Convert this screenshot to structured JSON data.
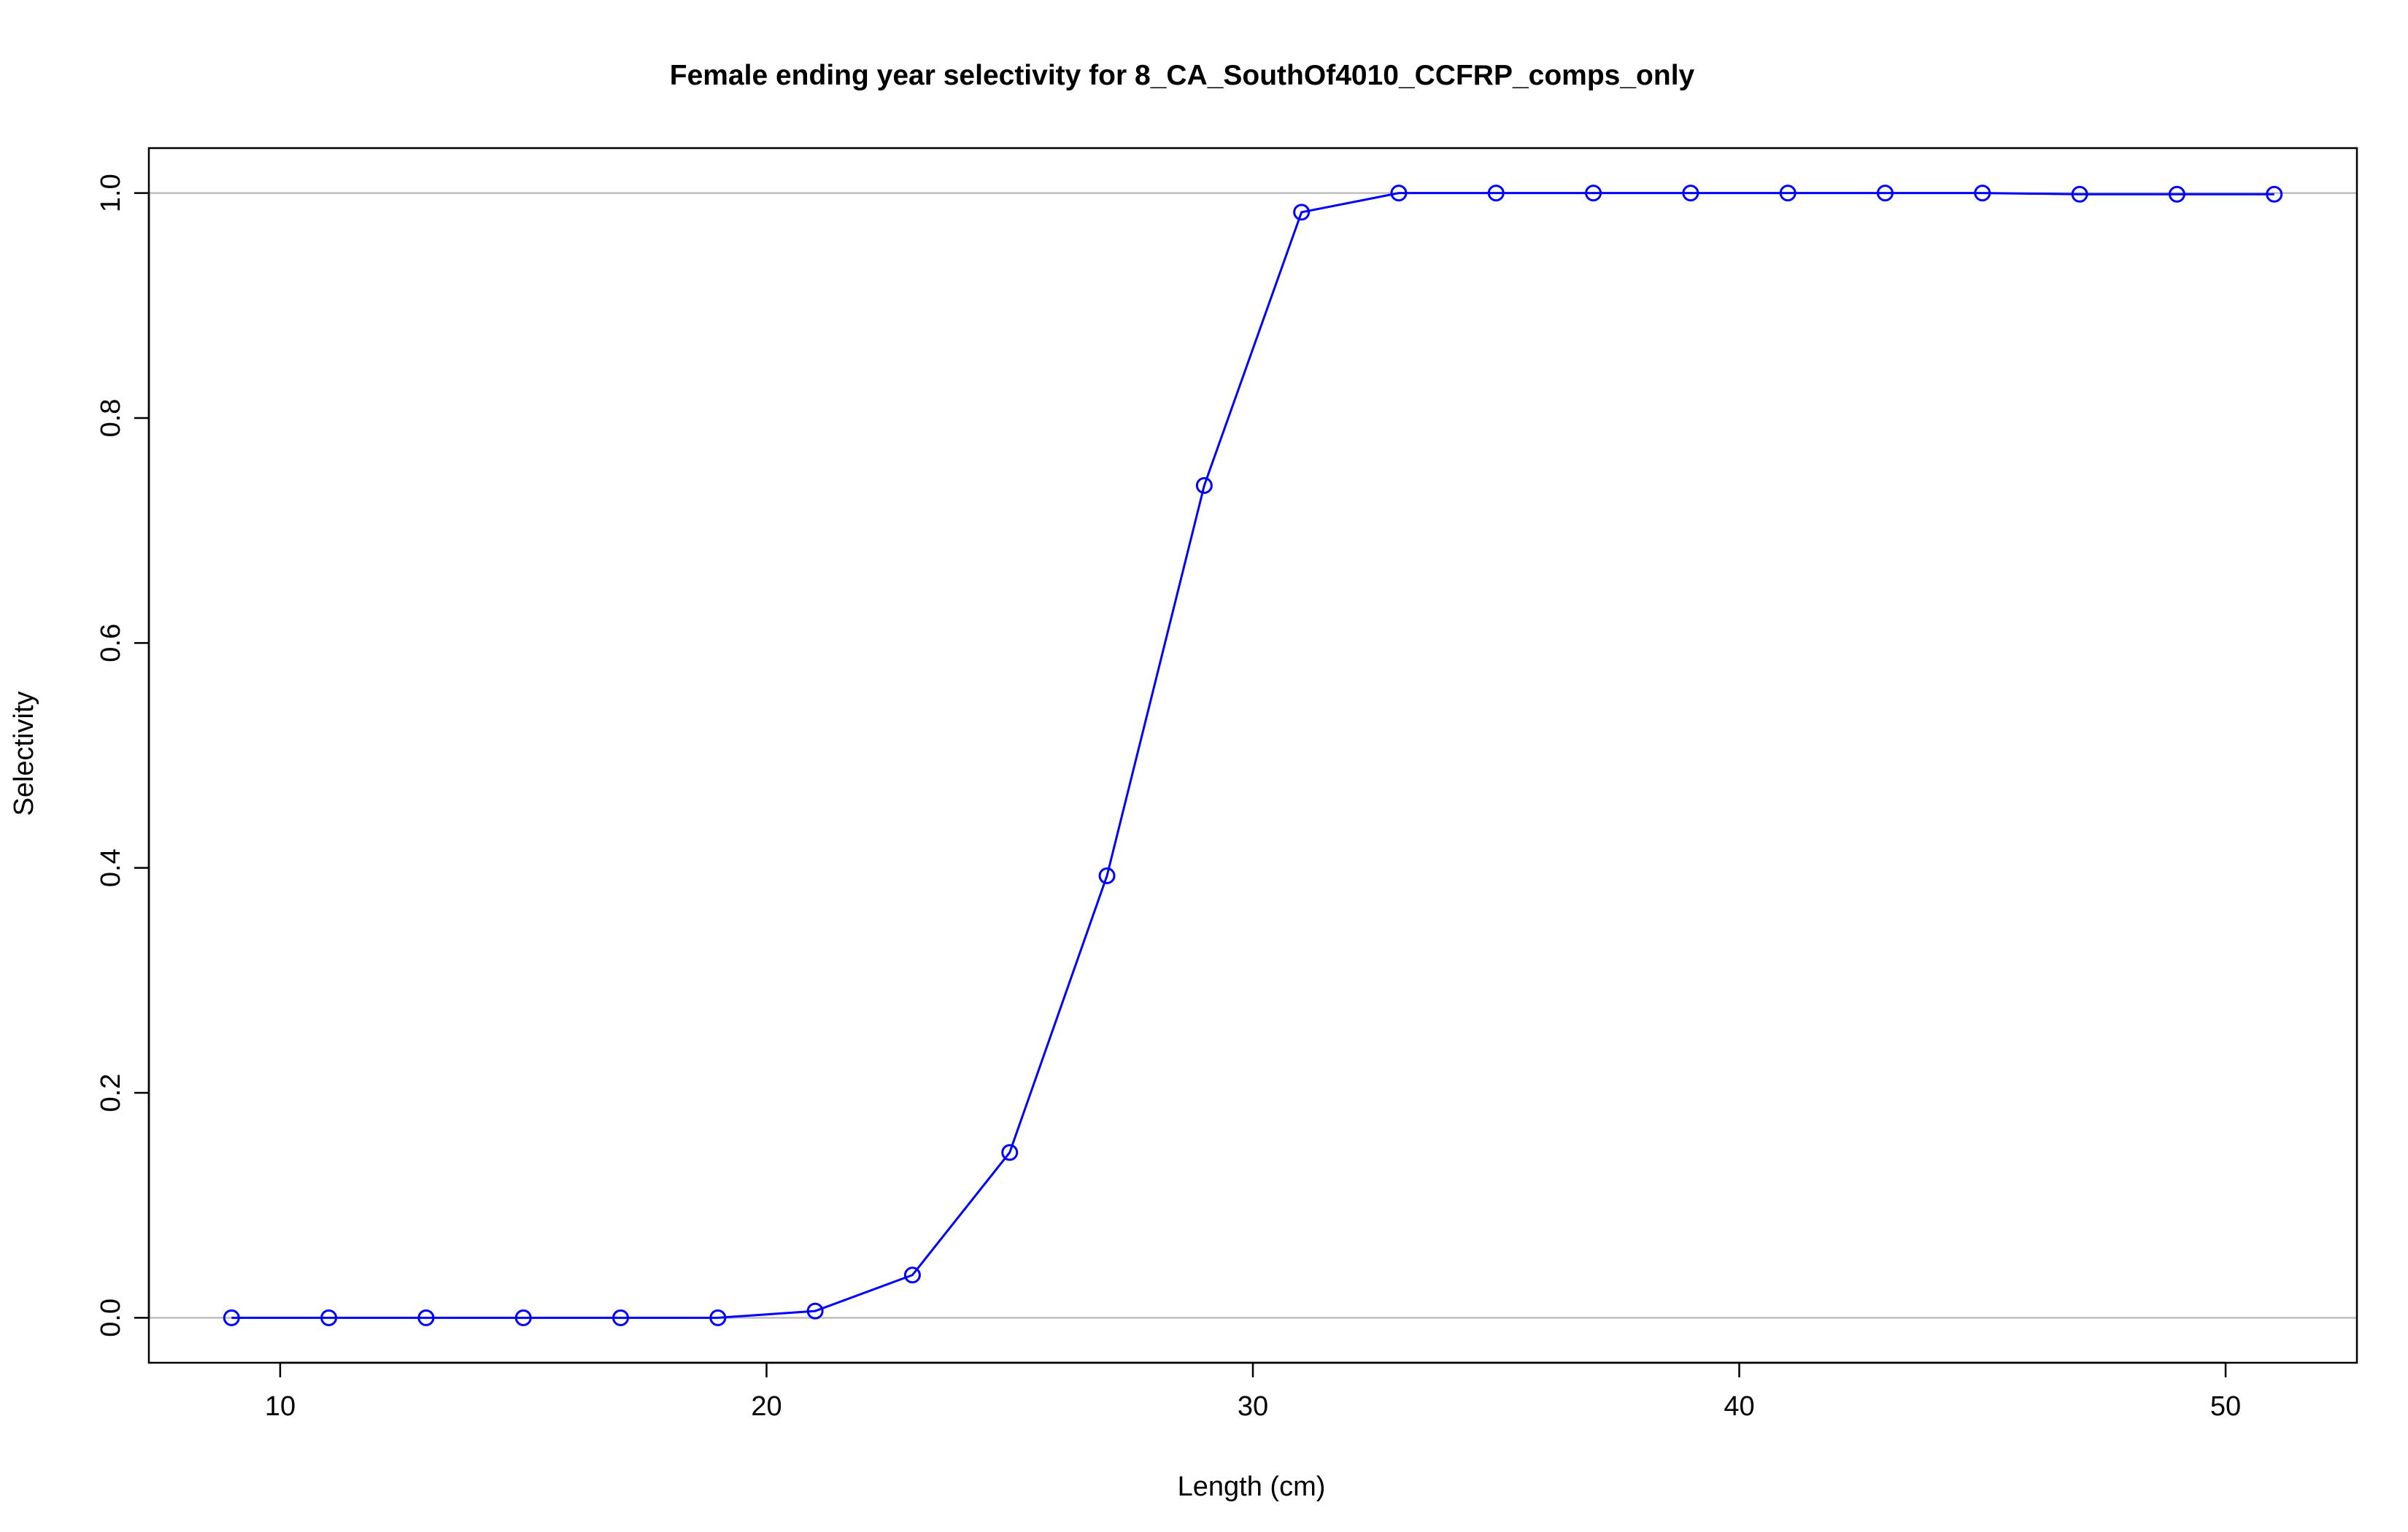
{
  "chart_data": {
    "type": "line",
    "title": "Female ending year selectivity for 8_CA_SouthOf4010_CCFRP_comps_only",
    "xlabel": "Length (cm)",
    "ylabel": "Selectivity",
    "xlim": [
      7.3,
      52.7
    ],
    "ylim": [
      -0.04,
      1.04
    ],
    "x_ticks": [
      10,
      20,
      30,
      40,
      50
    ],
    "x_tick_labels": [
      "10",
      "20",
      "30",
      "40",
      "50"
    ],
    "y_ticks": [
      0.0,
      0.2,
      0.4,
      0.6,
      0.8,
      1.0
    ],
    "y_tick_labels": [
      "0.0",
      "0.2",
      "0.4",
      "0.6",
      "0.8",
      "1.0"
    ],
    "reference_lines_y": [
      0,
      1
    ],
    "reference_line_color": "#bebebe",
    "grid": false,
    "series": [
      {
        "color": "#0000ff",
        "marker": "open-circle",
        "x": [
          9,
          11,
          13,
          15,
          17,
          19,
          21,
          23,
          25,
          27,
          29,
          31,
          33,
          35,
          37,
          39,
          41,
          43,
          45,
          47,
          49,
          51
        ],
        "values": [
          0.0,
          0.0,
          0.0,
          0.0,
          0.0,
          0.0,
          0.006,
          0.038,
          0.147,
          0.393,
          0.74,
          0.983,
          1.0,
          1.0,
          1.0,
          1.0,
          1.0,
          1.0,
          1.0,
          0.999,
          0.999,
          0.999
        ]
      }
    ]
  }
}
